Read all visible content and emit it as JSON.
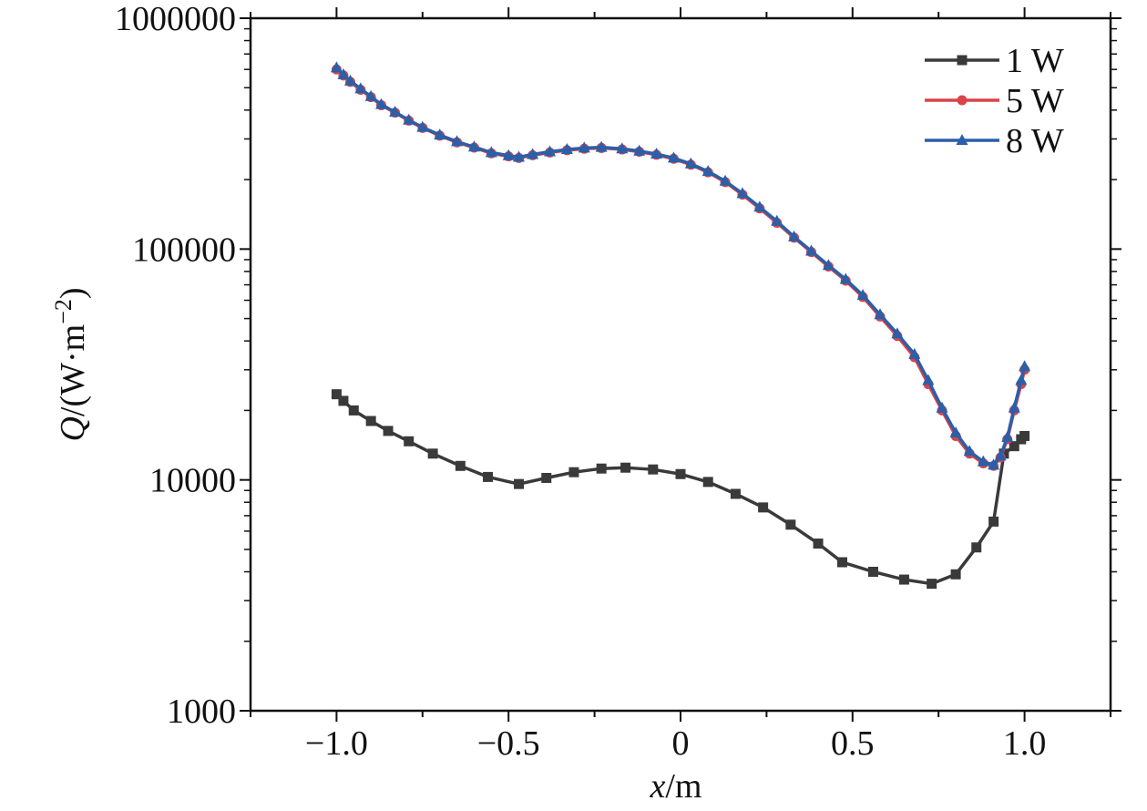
{
  "chart_data": {
    "type": "line",
    "title": "",
    "xlabel": "x/m",
    "ylabel": "Q/(W·m−2)",
    "xlim": [
      -1.25,
      1.25
    ],
    "ylim": [
      1000,
      1000000
    ],
    "yscale": "log",
    "grid": false,
    "legend_position": "top-right",
    "x_ticks": [
      -1.0,
      -0.5,
      0,
      0.5,
      1.0
    ],
    "x_tick_labels": [
      "−1.0",
      "−0.5",
      "0",
      "0.5",
      "1.0"
    ],
    "y_ticks": [
      1000,
      10000,
      100000,
      1000000
    ],
    "y_tick_labels": [
      "1000",
      "10000",
      "100000",
      "1000000"
    ],
    "series": [
      {
        "name": "1 W",
        "color": "#3a3a3a",
        "marker": "square",
        "x": [
          -1.0,
          -0.98,
          -0.95,
          -0.9,
          -0.85,
          -0.79,
          -0.72,
          -0.64,
          -0.56,
          -0.47,
          -0.39,
          -0.31,
          -0.23,
          -0.16,
          -0.08,
          0.0,
          0.08,
          0.16,
          0.24,
          0.32,
          0.4,
          0.47,
          0.56,
          0.65,
          0.73,
          0.8,
          0.86,
          0.91,
          0.94,
          0.97,
          0.99,
          1.0
        ],
        "y": [
          23500,
          22000,
          20000,
          18000,
          16300,
          14700,
          13000,
          11500,
          10300,
          9600,
          10200,
          10800,
          11200,
          11300,
          11100,
          10600,
          9800,
          8700,
          7600,
          6400,
          5300,
          4400,
          4000,
          3700,
          3550,
          3900,
          5100,
          6600,
          13000,
          14000,
          15000,
          15500
        ]
      },
      {
        "name": "5 W",
        "color": "#d9434a",
        "marker": "circle",
        "x": [
          -1.0,
          -0.98,
          -0.96,
          -0.93,
          -0.9,
          -0.87,
          -0.83,
          -0.79,
          -0.75,
          -0.7,
          -0.65,
          -0.6,
          -0.55,
          -0.5,
          -0.47,
          -0.43,
          -0.38,
          -0.33,
          -0.28,
          -0.23,
          -0.17,
          -0.12,
          -0.07,
          -0.02,
          0.03,
          0.08,
          0.13,
          0.18,
          0.23,
          0.28,
          0.33,
          0.38,
          0.43,
          0.48,
          0.53,
          0.58,
          0.63,
          0.68,
          0.72,
          0.76,
          0.8,
          0.84,
          0.88,
          0.91,
          0.93,
          0.95,
          0.97,
          0.99,
          1.0
        ],
        "y": [
          600000,
          565000,
          530000,
          490000,
          455000,
          420000,
          390000,
          360000,
          335000,
          310000,
          290000,
          275000,
          260000,
          252000,
          248000,
          255000,
          262000,
          268000,
          272000,
          274000,
          270000,
          264000,
          256000,
          246000,
          232000,
          215000,
          195000,
          172000,
          150000,
          130000,
          112000,
          97000,
          84000,
          73000,
          62000,
          51000,
          42000,
          34000,
          26000,
          20000,
          15500,
          13000,
          11800,
          11500,
          12500,
          15000,
          20000,
          26000,
          30000
        ]
      },
      {
        "name": "8 W",
        "color": "#2b5fa8",
        "marker": "triangle",
        "x": [
          -1.0,
          -0.98,
          -0.96,
          -0.93,
          -0.9,
          -0.87,
          -0.83,
          -0.79,
          -0.75,
          -0.7,
          -0.65,
          -0.6,
          -0.55,
          -0.5,
          -0.47,
          -0.43,
          -0.38,
          -0.33,
          -0.28,
          -0.23,
          -0.17,
          -0.12,
          -0.07,
          -0.02,
          0.03,
          0.08,
          0.13,
          0.18,
          0.23,
          0.28,
          0.33,
          0.38,
          0.43,
          0.48,
          0.53,
          0.58,
          0.63,
          0.68,
          0.72,
          0.76,
          0.8,
          0.84,
          0.88,
          0.91,
          0.93,
          0.95,
          0.97,
          0.99,
          1.0
        ],
        "y": [
          610000,
          570000,
          535000,
          495000,
          458000,
          423000,
          392000,
          362000,
          337000,
          312000,
          292000,
          277000,
          262000,
          254000,
          250000,
          257000,
          264000,
          270000,
          274000,
          276000,
          272000,
          266000,
          258000,
          248000,
          234000,
          217000,
          197000,
          174000,
          152000,
          132000,
          113000,
          98000,
          85000,
          74000,
          63000,
          52000,
          43000,
          35000,
          27000,
          20500,
          16000,
          13300,
          12000,
          11600,
          12700,
          15300,
          20500,
          27000,
          31000
        ]
      }
    ]
  }
}
